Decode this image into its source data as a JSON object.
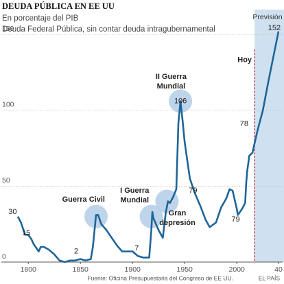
{
  "chart_data": {
    "type": "line",
    "title": "DEUDA PÚBLICA EN EE UU",
    "subtitle": "En porcentaje del PIB",
    "subtitle2": "Deuda Federal Pública, sin contar deuda intragubernamental",
    "source": "Fuente: Oficina Presupuestaria del Congreso  de EE UU.",
    "credit": "EL PAÍS",
    "color": "#1f6497",
    "grid": true,
    "xlim": [
      1790,
      2040
    ],
    "ylim": [
      0,
      160
    ],
    "xticks": [
      1800,
      1850,
      1900,
      1950,
      2000,
      {
        "value": 2040,
        "label": "40"
      }
    ],
    "yticks": [
      0,
      50,
      100,
      150
    ],
    "x": [
      1790,
      1793,
      1797,
      1800,
      1803,
      1805,
      1810,
      1812,
      1815,
      1820,
      1825,
      1830,
      1835,
      1840,
      1845,
      1850,
      1855,
      1860,
      1862,
      1865,
      1867,
      1870,
      1875,
      1880,
      1885,
      1890,
      1895,
      1900,
      1905,
      1910,
      1916,
      1918,
      1919,
      1920,
      1925,
      1929,
      1932,
      1934,
      1936,
      1939,
      1942,
      1944,
      1946,
      1948,
      1950,
      1955,
      1960,
      1965,
      1970,
      1974,
      1980,
      1985,
      1990,
      1993,
      1996,
      2000,
      2001,
      2005,
      2008,
      2009,
      2010,
      2012,
      2015,
      2017,
      2020,
      2025,
      2030,
      2035,
      2040
    ],
    "values": [
      30,
      26,
      18,
      18,
      15,
      12,
      7,
      10,
      10,
      8,
      5,
      1,
      0,
      1,
      1,
      2,
      1,
      2,
      10,
      31,
      31,
      25,
      21,
      16,
      11,
      7,
      7,
      7,
      4,
      3,
      3,
      21,
      33,
      29,
      21,
      16,
      33,
      40,
      39,
      43,
      48,
      92,
      106,
      93,
      79,
      55,
      45,
      37,
      28,
      23,
      26,
      36,
      42,
      48,
      47,
      35,
      31,
      35,
      39,
      52,
      60,
      70,
      72,
      78,
      87,
      100,
      118,
      135,
      152
    ],
    "forecast": {
      "start": 2017,
      "label": "Previsión",
      "today": "Hoy"
    },
    "highlights": [
      {
        "x": 1865,
        "y": 30
      },
      {
        "x": 1918,
        "y": 30
      },
      {
        "x": 1933,
        "y": 40
      },
      {
        "x": 1946,
        "y": 106
      }
    ],
    "annotations": [
      {
        "lines": [
          "30"
        ],
        "x": 1785,
        "y": 33
      },
      {
        "lines": [
          "15"
        ],
        "x": 1798,
        "y": 19
      },
      {
        "lines": [
          "Guerra Civil"
        ],
        "x": 1853,
        "y": 41
      },
      {
        "lines": [
          "2"
        ],
        "x": 1846,
        "y": 7
      },
      {
        "lines": [
          "I Guerra",
          "Mundial"
        ],
        "x": 1902,
        "y": 47
      },
      {
        "lines": [
          "7"
        ],
        "x": 1904,
        "y": 9
      },
      {
        "lines": [
          "Gran",
          "depresión"
        ],
        "x": 1943,
        "y": 32
      },
      {
        "lines": [
          "79"
        ],
        "x": 1958,
        "y": 47
      },
      {
        "lines": [
          "II Guerra",
          "Mundial"
        ],
        "x": 1937,
        "y": 122
      },
      {
        "lines": [
          "106"
        ],
        "x": 1946,
        "y": 106
      },
      {
        "lines": [
          "79"
        ],
        "x": 1999,
        "y": 28
      },
      {
        "lines": [
          "78"
        ],
        "x": 2007,
        "y": 91
      },
      {
        "lines": [
          "152"
        ],
        "x": 2036,
        "y": 154
      }
    ]
  }
}
